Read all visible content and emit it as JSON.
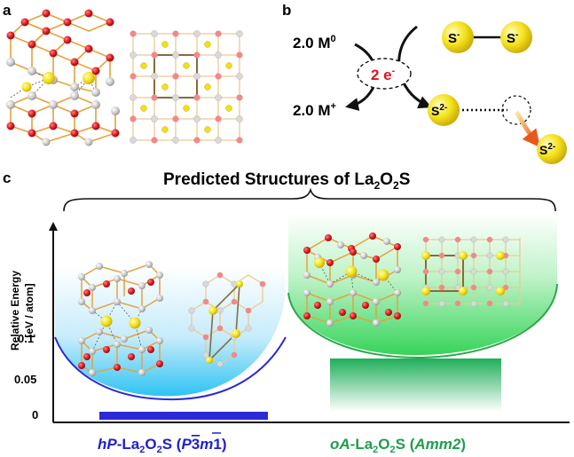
{
  "panels": {
    "a": {
      "letter": "a"
    },
    "b": {
      "letter": "b",
      "reactant": "2.0 M",
      "reactant_sup": "0",
      "product": "2.0 M",
      "product_sup": "+",
      "electrons": "2 e",
      "electrons_sup": "-",
      "dimer_left": "S",
      "dimer_right": "S",
      "dimer_sup": "-",
      "sulfide": "S",
      "sulfide_sup": "2-"
    },
    "c": {
      "letter": "c",
      "title_pre": "Predicted Structures of La",
      "title_sub1": "2",
      "title_mid": "O",
      "title_sub2": "2",
      "title_post": "S",
      "y_label_1": "Relative Energy",
      "y_label_2": "[eV / atom]",
      "y_ticks": [
        "0.1",
        "0.05",
        "0"
      ],
      "left_structure": {
        "prefix": "hP",
        "name_pre": "-La",
        "sub1": "2",
        "name_mid": "O",
        "sub2": "2",
        "name_post": "S (",
        "group_italic": "P",
        "group_bar": "3",
        "group_m": "m",
        "group_end": "1)",
        "color": "#1f1fcf"
      },
      "right_structure": {
        "prefix": "oA",
        "name_pre": "-La",
        "sub1": "2",
        "name_mid": "O",
        "sub2": "2",
        "name_post": "S (",
        "group_italic": "Amm2",
        "group_end": ")",
        "color": "#1f9e4a"
      }
    }
  },
  "colors": {
    "oxygen": "#d8161b",
    "lanthanum": "#c9c9c9",
    "sulfur": "#f2e20f",
    "bond": "#e6a23c",
    "hp_bar": "#2a2ad6",
    "oa_bar": "#1fae5a"
  }
}
